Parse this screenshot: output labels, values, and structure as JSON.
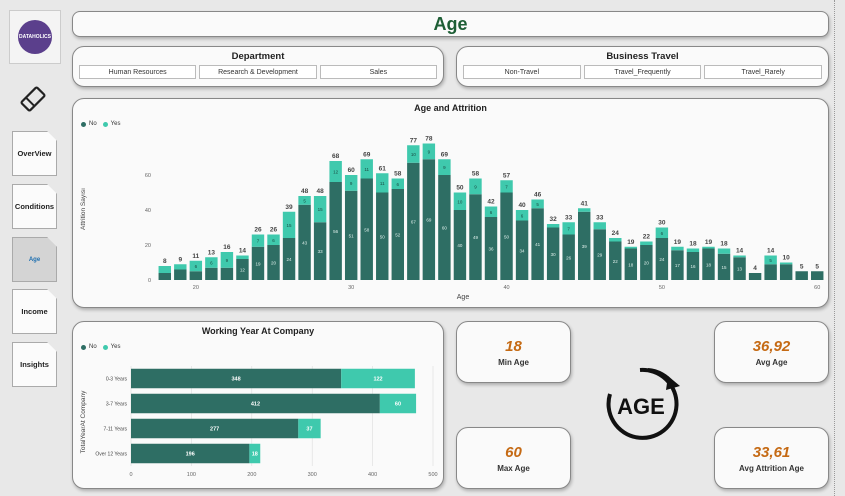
{
  "page": {
    "title": "Age"
  },
  "logo": {
    "text": "DATAHOLICS"
  },
  "nav": [
    {
      "label": "OverView"
    },
    {
      "label": "Conditions"
    },
    {
      "label": "Age"
    },
    {
      "label": "Income"
    },
    {
      "label": "Insights"
    }
  ],
  "department": {
    "title": "Department",
    "items": [
      "Human Resources",
      "Research & Development",
      "Sales"
    ]
  },
  "travel": {
    "title": "Business Travel",
    "items": [
      "Non-Travel",
      "Travel_Frequently",
      "Travel_Rarely"
    ]
  },
  "colors": {
    "no": "#2e6e64",
    "yes": "#3fc9ad",
    "kpi": "#c56a14",
    "title": "#1d5e35"
  },
  "age_chart": {
    "title": "Age and Attrition",
    "legend": [
      "No",
      "Yes"
    ],
    "xlabel": "Age",
    "ylabel": "Attrition Sayısı",
    "x_ticks": [
      20,
      30,
      40,
      50,
      60
    ],
    "y_ticks": [
      0,
      20,
      40,
      60
    ],
    "chart_data": {
      "type": "bar",
      "stacked": true,
      "ylim": [
        0,
        80
      ],
      "categories": [
        18,
        19,
        20,
        21,
        22,
        23,
        24,
        25,
        26,
        27,
        28,
        29,
        30,
        31,
        32,
        33,
        34,
        35,
        36,
        37,
        38,
        39,
        40,
        41,
        42,
        43,
        44,
        45,
        46,
        47,
        48,
        49,
        50,
        51,
        52,
        53,
        54,
        55,
        56,
        57,
        58,
        59,
        60
      ],
      "totals": [
        8,
        9,
        11,
        13,
        16,
        14,
        26,
        26,
        39,
        48,
        48,
        68,
        60,
        69,
        61,
        58,
        77,
        78,
        69,
        50,
        58,
        42,
        57,
        40,
        46,
        32,
        33,
        41,
        33,
        24,
        19,
        22,
        30,
        19,
        18,
        19,
        18,
        14,
        4,
        14,
        10,
        5,
        5
      ],
      "series": [
        {
          "name": "No",
          "values": [
            4,
            6,
            5,
            7,
            7,
            12,
            19,
            20,
            24,
            43,
            33,
            56,
            51,
            58,
            50,
            52,
            67,
            69,
            60,
            40,
            49,
            36,
            50,
            34,
            41,
            30,
            26,
            39,
            29,
            22,
            18,
            20,
            24,
            17,
            16,
            18,
            15,
            13,
            4,
            9,
            9,
            5,
            5
          ]
        },
        {
          "name": "Yes",
          "values": [
            4,
            3,
            6,
            6,
            9,
            2,
            7,
            6,
            15,
            5,
            15,
            12,
            9,
            11,
            11,
            6,
            10,
            9,
            9,
            10,
            9,
            6,
            7,
            6,
            5,
            2,
            7,
            2,
            4,
            2,
            1,
            2,
            6,
            2,
            2,
            1,
            3,
            1,
            0,
            5,
            1,
            0,
            0
          ]
        }
      ]
    }
  },
  "work_chart": {
    "title": "Working Year At Company",
    "legend": [
      "No",
      "Yes"
    ],
    "ylabel": "TotalYearAt Company",
    "x_ticks": [
      0,
      100,
      200,
      300,
      400,
      500
    ],
    "chart_data": {
      "type": "bar",
      "orientation": "horizontal",
      "stacked": true,
      "xlim": [
        0,
        500
      ],
      "categories": [
        "0-3 Years",
        "3-7 Years",
        "7-11 Years",
        "Over 12 Years"
      ],
      "series": [
        {
          "name": "No",
          "values": [
            348,
            412,
            277,
            196
          ]
        },
        {
          "name": "Yes",
          "values": [
            122,
            60,
            37,
            18
          ]
        }
      ]
    }
  },
  "kpis": {
    "min_age": {
      "value": "18",
      "label": "Min Age"
    },
    "max_age": {
      "value": "60",
      "label": "Max Age"
    },
    "avg_age": {
      "value": "36,92",
      "label": "Avg Age"
    },
    "avg_attr_age": {
      "value": "33,61",
      "label": "Avg Attrition Age"
    }
  },
  "age_logo": {
    "text": "AGE"
  }
}
